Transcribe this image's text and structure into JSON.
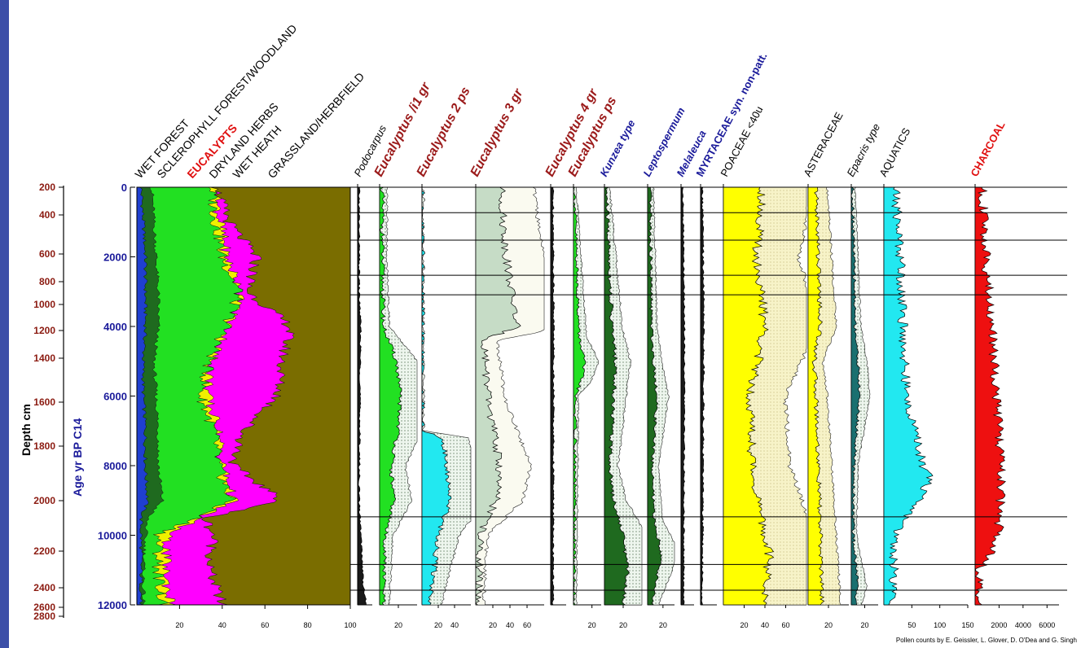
{
  "colors": {
    "left_bar": "#3c4fa8",
    "wet_forest": "#1f3fd0",
    "sclerophyll": "#1f6a1f",
    "eucalypts": "#22e022",
    "dryland_herbs": "#f0f000",
    "wet_heath": "#ff00ff",
    "grassland": "#7a6d00",
    "depth_labels": "#8b1a10",
    "age_labels": "#1a1a9a",
    "red_title": "#e01010",
    "dark_red_title": "#9b1a1a",
    "blue_title": "#1a1a9a",
    "yellow": "#ffff00",
    "cream": "#f7f3c8",
    "light_green_fill": "#c6dcc6",
    "green_dot_fill": "#eaf5ea",
    "cyan": "#22e8f0",
    "teal": "#1a7070",
    "red_fill": "#ee1010"
  },
  "axes": {
    "depth_label": "Depth cm",
    "age_label": "Age yr BP C14",
    "depth_ticks": [
      "200",
      "400",
      "600",
      "800",
      "1000",
      "1200",
      "1400",
      "1600",
      "1800",
      "2000",
      "2200",
      "2400",
      "2600",
      "2800"
    ],
    "age_ticks": [
      "0",
      "2000",
      "4000",
      "6000",
      "8000",
      "10000",
      "12000"
    ]
  },
  "credit": "Pollen counts by E. Geissler, L. Glover, D. O'Dea and G. Singh",
  "chart_data": {
    "type": "area",
    "subtype": "stratigraphic pollen diagram",
    "y_axis": {
      "label": "Age yr BP C14",
      "range": [
        0,
        12000
      ],
      "inverted": true
    },
    "secondary_y_axis": {
      "label": "Depth cm",
      "range": [
        200,
        2800
      ],
      "inverted": true
    },
    "zone_boundaries_age": [
      730,
      1520,
      2530,
      3090,
      9470,
      10840,
      11580
    ],
    "summary": {
      "x_range": [
        0,
        100
      ],
      "x_ticks": [
        "20",
        "40",
        "60",
        "80",
        "100"
      ],
      "series": [
        {
          "name": "WET FOREST",
          "age": [
            0,
            1000,
            2000,
            3000,
            4000,
            5000,
            6000,
            7000,
            8000,
            9000,
            9500,
            10000,
            11000,
            12000
          ],
          "cumulative": [
            2,
            3,
            4,
            4,
            4,
            3,
            3,
            4,
            4,
            5,
            2,
            2,
            2,
            2
          ]
        },
        {
          "name": "SCLEROPHYLL FOREST/WOODLAND",
          "age": [
            0,
            1000,
            2000,
            3000,
            4000,
            5000,
            6000,
            7000,
            8000,
            9000,
            9500,
            10000,
            11000,
            12000
          ],
          "cumulative": [
            7,
            8,
            9,
            10,
            10,
            8,
            9,
            10,
            10,
            12,
            5,
            4,
            3,
            3
          ]
        },
        {
          "name": "EUCALYPTS",
          "age": [
            0,
            1000,
            2000,
            3000,
            4000,
            5000,
            6000,
            7000,
            8000,
            9000,
            9500,
            10000,
            11000,
            12000
          ],
          "cumulative": [
            35,
            37,
            40,
            48,
            42,
            34,
            30,
            36,
            38,
            44,
            28,
            10,
            10,
            12
          ]
        },
        {
          "name": "DRYLAND HERBS",
          "age": [
            0,
            1000,
            2000,
            3000,
            4000,
            5000,
            6000,
            7000,
            8000,
            9000,
            9500,
            10000,
            11000,
            12000
          ],
          "cumulative": [
            36,
            39,
            42,
            49,
            43,
            35,
            33,
            38,
            40,
            45,
            29,
            14,
            13,
            16
          ]
        },
        {
          "name": "WET HEATH",
          "age": [
            0,
            1000,
            2000,
            3000,
            4000,
            5000,
            6000,
            7000,
            8000,
            9000,
            9500,
            10000,
            11000,
            12000
          ],
          "cumulative": [
            37,
            43,
            56,
            52,
            72,
            68,
            66,
            50,
            45,
            68,
            32,
            36,
            34,
            40
          ]
        },
        {
          "name": "GRASSLAND/HERBFIELD",
          "age": [
            0,
            12000
          ],
          "cumulative": [
            100,
            100
          ]
        }
      ]
    },
    "taxa": [
      {
        "name": "Podocarpus",
        "x_ticks": [],
        "age": [
          0,
          3000,
          4000,
          9000,
          11500,
          12000
        ],
        "values": [
          1,
          1,
          2,
          1,
          4,
          6
        ]
      },
      {
        "name": "Eucalyptus /i1 gr",
        "x_ticks": [
          "20"
        ],
        "age": [
          0,
          2000,
          4000,
          5000,
          6000,
          7000,
          8000,
          9000,
          10000,
          12000
        ],
        "values": [
          3,
          3,
          4,
          18,
          22,
          20,
          12,
          15,
          6,
          4
        ]
      },
      {
        "name": "Eucalyptus 2 ps",
        "x_ticks": [
          "20",
          "40"
        ],
        "age": [
          0,
          7000,
          7200,
          8000,
          9000,
          10000,
          11000,
          12000
        ],
        "values": [
          0,
          0,
          25,
          30,
          35,
          20,
          15,
          10
        ]
      },
      {
        "name": "Eucalyptus 3 gr",
        "x_ticks": [
          "20",
          "40",
          "60"
        ],
        "age": [
          0,
          1000,
          2000,
          3000,
          4000,
          4400,
          5000,
          6000,
          8000,
          9000,
          10000,
          12000
        ],
        "values": [
          30,
          32,
          36,
          42,
          48,
          10,
          12,
          14,
          28,
          24,
          5,
          3
        ]
      },
      {
        "name": "Eucalyptus 4 gr",
        "x_ticks": [],
        "age": [
          0,
          4000,
          12000
        ],
        "values": [
          3,
          4,
          3
        ]
      },
      {
        "name": "Eucalyptus ps",
        "x_ticks": [
          "20"
        ],
        "age": [
          0,
          4300,
          5000,
          5600,
          6000,
          12000
        ],
        "values": [
          1,
          6,
          12,
          8,
          2,
          1
        ]
      },
      {
        "name": "Kunzea type",
        "x_ticks": [
          "20"
        ],
        "age": [
          0,
          4000,
          5000,
          6000,
          8000,
          9000,
          10000,
          11000,
          12000
        ],
        "values": [
          2,
          8,
          12,
          10,
          6,
          10,
          20,
          25,
          20
        ]
      },
      {
        "name": "Leptospermum",
        "x_ticks": [
          "20"
        ],
        "age": [
          0,
          4000,
          5000,
          6000,
          8000,
          9500,
          10500,
          11500,
          12000
        ],
        "values": [
          3,
          5,
          8,
          12,
          6,
          8,
          18,
          10,
          6
        ]
      },
      {
        "name": "Melaleuca",
        "x_ticks": [],
        "age": [
          0,
          4000,
          12000
        ],
        "values": [
          2,
          4,
          3
        ]
      },
      {
        "name": "MYRTACEAE syn. non-patt.",
        "x_ticks": [],
        "age": [
          0,
          4000,
          12000
        ],
        "values": [
          1,
          2,
          1
        ]
      },
      {
        "name": "POACEAE <40u",
        "x_ticks": [
          "20",
          "40",
          "60"
        ],
        "age": [
          0,
          2000,
          4000,
          6000,
          8000,
          9500,
          10500,
          12000
        ],
        "values": [
          38,
          32,
          40,
          26,
          28,
          36,
          44,
          40
        ]
      },
      {
        "name": "ASTERACEAE",
        "x_ticks": [
          "20"
        ],
        "age": [
          0,
          2000,
          4000,
          5000,
          6000,
          8000,
          10000,
          12000
        ],
        "values": [
          8,
          10,
          12,
          6,
          8,
          10,
          12,
          14
        ]
      },
      {
        "name": "Epacris type",
        "x_ticks": [
          "20"
        ],
        "age": [
          0,
          4000,
          5000,
          6000,
          8000,
          10000,
          11500,
          12000
        ],
        "values": [
          2,
          6,
          10,
          12,
          4,
          3,
          10,
          6
        ]
      },
      {
        "name": "AQUATICS",
        "x_ticks": [
          "50",
          "100",
          "150"
        ],
        "age": [
          0,
          2000,
          4000,
          6000,
          8000,
          8200,
          9000,
          10000,
          12000
        ],
        "values": [
          20,
          30,
          34,
          40,
          70,
          90,
          60,
          20,
          15
        ]
      },
      {
        "name": "CHARCOAL",
        "x_ticks": [
          "2000",
          "4000",
          "6000"
        ],
        "age": [
          0,
          2000,
          4000,
          6000,
          8000,
          10000,
          10500,
          11000,
          12000
        ],
        "values": [
          600,
          900,
          1400,
          1800,
          2200,
          2000,
          1500,
          300,
          200
        ]
      }
    ]
  }
}
